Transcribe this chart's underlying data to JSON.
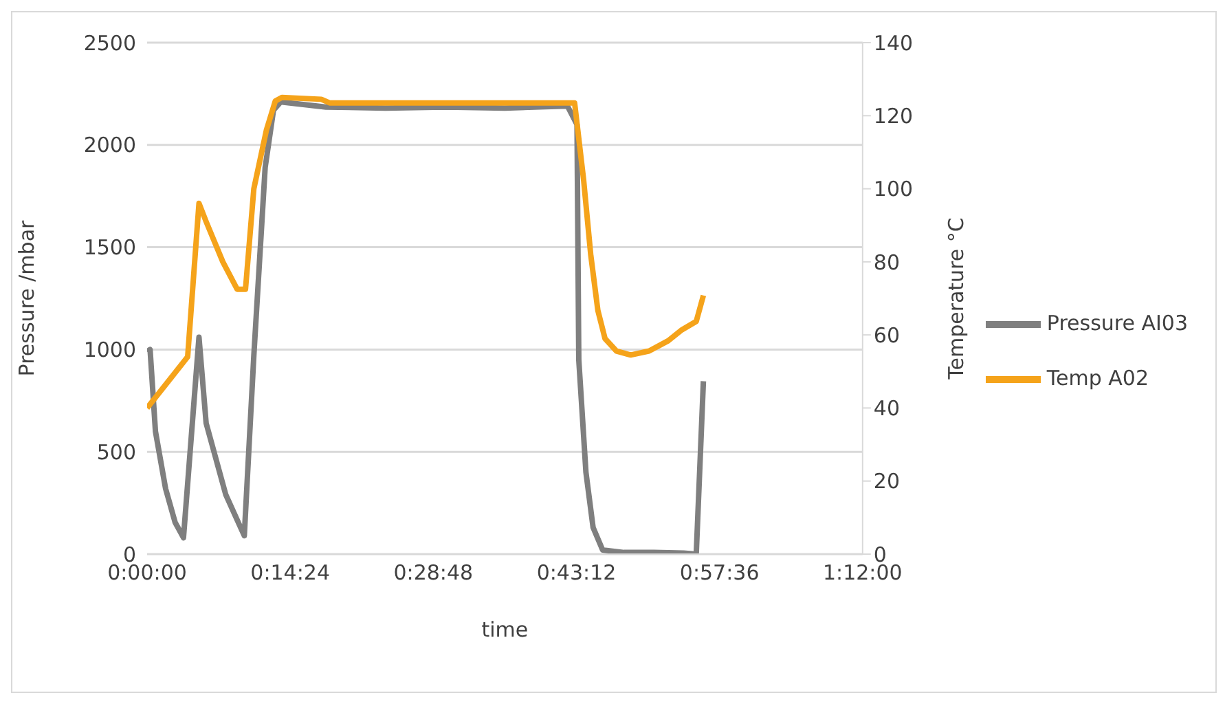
{
  "chart_data": {
    "type": "line",
    "xlabel": "time",
    "ylabel": "Pressure /mbar",
    "y2label": "Temperature °C",
    "xlim": [
      0,
      1.2
    ],
    "xticks": [
      {
        "value": 0,
        "label": "0:00:00"
      },
      {
        "value": 0.24,
        "label": "0:14:24"
      },
      {
        "value": 0.48,
        "label": "0:28:48"
      },
      {
        "value": 0.72,
        "label": "0:43:12"
      },
      {
        "value": 0.96,
        "label": "0:57:36"
      },
      {
        "value": 1.2,
        "label": "1:12:00"
      }
    ],
    "ylim": [
      0,
      2500
    ],
    "yticks": [
      0,
      500,
      1000,
      1500,
      2000,
      2500
    ],
    "y2lim": [
      0,
      140
    ],
    "y2ticks": [
      0,
      20,
      40,
      60,
      80,
      100,
      120,
      140
    ],
    "grid": "y",
    "legend": "right",
    "marker": "none",
    "line_style": "solid",
    "series": [
      {
        "name": "Pressure AI03",
        "color": "#7f7f7f",
        "x": [
          0,
          0.005,
          0.014,
          0.031,
          0.047,
          0.061,
          0.087,
          0.099,
          0.132,
          0.163,
          0.179,
          0.198,
          0.212,
          0.224,
          0.3,
          0.4,
          0.5,
          0.6,
          0.705,
          0.721,
          0.724,
          0.736,
          0.748,
          0.764,
          0.8,
          0.85,
          0.9,
          0.921,
          0.933
        ],
        "values": [
          990,
          1000,
          600,
          320,
          155,
          80,
          1060,
          640,
          290,
          90,
          970,
          1890,
          2170,
          2210,
          2185,
          2180,
          2185,
          2180,
          2190,
          2100,
          950,
          400,
          130,
          20,
          8,
          8,
          5,
          0,
          845
        ]
      },
      {
        "name": "Temp A02",
        "color": "#f5a31a",
        "x": [
          0,
          0.068,
          0.087,
          0.099,
          0.127,
          0.151,
          0.165,
          0.179,
          0.2,
          0.215,
          0.226,
          0.292,
          0.306,
          0.717,
          0.732,
          0.744,
          0.756,
          0.768,
          0.787,
          0.811,
          0.842,
          0.874,
          0.897,
          0.921,
          0.933
        ],
        "values": [
          40,
          54,
          96,
          91,
          80,
          72.5,
          72.5,
          100,
          116,
          124,
          125,
          124.5,
          123.5,
          123.5,
          102.6,
          82,
          66.7,
          59,
          55.6,
          54.5,
          55.6,
          58.4,
          61.4,
          63.7,
          70.8
        ],
        "axis": "y2"
      }
    ]
  }
}
